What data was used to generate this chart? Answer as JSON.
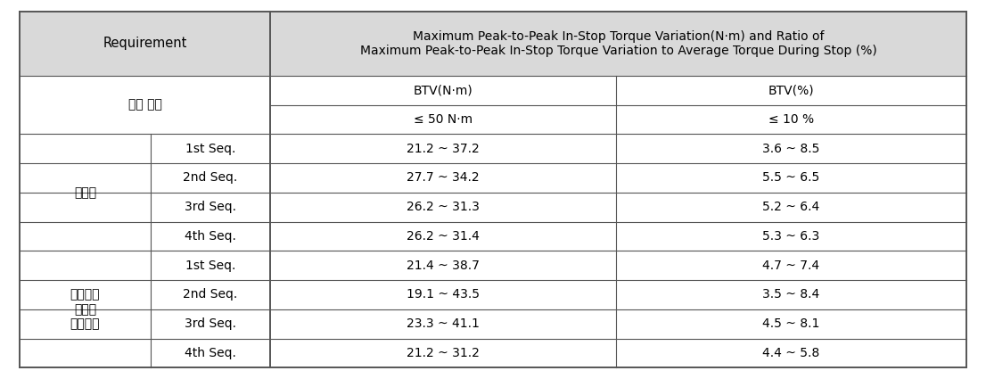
{
  "header_col1": "Requirement",
  "header_col2": "Maximum Peak-to-Peak In-Stop Torque Variation(N·m) and Ratio of\nMaximum Peak-to-Peak In-Stop Torque Variation to Average Torque During Stop (%)",
  "btv_nm": "BTV(N·m)",
  "btv_pct": "BTV(%)",
  "standard_label": "세계 수준",
  "standard_nm": "≤ 50 N·m",
  "standard_pct": "≤ 10 %",
  "group1_label": "일체형",
  "group2_label": "이중재질\n디스코\n개발모델",
  "rows": [
    [
      "1st Seq.",
      "21.2 ~ 37.2",
      "3.6 ~ 8.5"
    ],
    [
      "2nd Seq.",
      "27.7 ~ 34.2",
      "5.5 ~ 6.5"
    ],
    [
      "3rd Seq.",
      "26.2 ~ 31.3",
      "5.2 ~ 6.4"
    ],
    [
      "4th Seq.",
      "26.2 ~ 31.4",
      "5.3 ~ 6.3"
    ],
    [
      "1st Seq.",
      "21.4 ~ 38.7",
      "4.7 ~ 7.4"
    ],
    [
      "2nd Seq.",
      "19.1 ~ 43.5",
      "3.5 ~ 8.4"
    ],
    [
      "3rd Seq.",
      "23.3 ~ 41.1",
      "4.5 ~ 8.1"
    ],
    [
      "4th Seq.",
      "21.2 ~ 31.2",
      "4.4 ~ 5.8"
    ]
  ],
  "bg_header": "#d9d9d9",
  "bg_white": "#ffffff",
  "line_color": "#555555",
  "font_size": 10,
  "font_size_header": 10.5
}
